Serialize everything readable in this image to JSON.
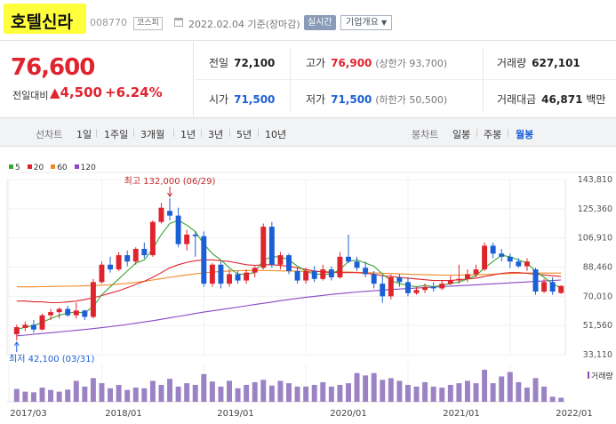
{
  "header": {
    "name": "호텔신라",
    "code": "008770",
    "market": "코스피",
    "date": "2022.02.04 기준(장마감)",
    "realtime": "실시간",
    "overview": "기업개요"
  },
  "price": {
    "current": "76,600",
    "change_label": "전일대비",
    "change_value": "▲4,500",
    "change_rate": "+6.24%"
  },
  "stats": {
    "prev_label": "전일",
    "prev": "72,100",
    "high_label": "고가",
    "high": "76,900",
    "upper_limit": "(상한가 93,700)",
    "volume_label": "거래량",
    "volume": "627,101",
    "open_label": "시가",
    "open": "71,500",
    "low_label": "저가",
    "low": "71,500",
    "lower_limit": "(하한가 50,500)",
    "amount_label": "거래대금",
    "amount": "46,871",
    "amount_unit": "백만"
  },
  "period_bar": {
    "line_label": "선차트",
    "periods": [
      "1일",
      "1주일",
      "3개월",
      "1년",
      "3년",
      "5년",
      "10년"
    ],
    "candle_label": "봉차트",
    "candles": [
      "일봉",
      "주봉",
      "월봉"
    ],
    "active_candle": "월봉"
  },
  "legend": [
    {
      "label": "5",
      "color": "#3aa533"
    },
    {
      "label": "20",
      "color": "#e0242e"
    },
    {
      "label": "60",
      "color": "#f08a24"
    },
    {
      "label": "120",
      "color": "#8a48c6"
    }
  ],
  "chart_data": {
    "type": "candlestick",
    "y_ticks": [
      "143,810",
      "125,360",
      "106,910",
      "88,460",
      "70,010",
      "51,560",
      "33,110"
    ],
    "ylim": [
      33110,
      143810
    ],
    "x_ticks": [
      "2017/03",
      "2018/01",
      "2019/01",
      "2020/01",
      "2021/01",
      "2022/01"
    ],
    "high_annotation": "최고 132,000 (06/29)",
    "low_annotation": "최저 42,100 (03/31)",
    "volume_label": "거래량",
    "up_color": "#e0242e",
    "down_color": "#1b5fd6",
    "candles": [
      {
        "o": 46000,
        "h": 52000,
        "l": 42100,
        "c": 50500
      },
      {
        "o": 50000,
        "h": 54000,
        "l": 48000,
        "c": 52000
      },
      {
        "o": 52000,
        "h": 55000,
        "l": 47000,
        "c": 49000
      },
      {
        "o": 49000,
        "h": 59000,
        "l": 48500,
        "c": 58000
      },
      {
        "o": 58000,
        "h": 62000,
        "l": 55000,
        "c": 60000
      },
      {
        "o": 60000,
        "h": 63000,
        "l": 56000,
        "c": 62000
      },
      {
        "o": 62000,
        "h": 64000,
        "l": 57000,
        "c": 58000
      },
      {
        "o": 58000,
        "h": 66000,
        "l": 56000,
        "c": 61000
      },
      {
        "o": 61000,
        "h": 61500,
        "l": 55000,
        "c": 57000
      },
      {
        "o": 57000,
        "h": 81000,
        "l": 56000,
        "c": 79000
      },
      {
        "o": 79000,
        "h": 92000,
        "l": 78000,
        "c": 90000
      },
      {
        "o": 90000,
        "h": 95000,
        "l": 85000,
        "c": 87000
      },
      {
        "o": 87000,
        "h": 98000,
        "l": 86000,
        "c": 96000
      },
      {
        "o": 96000,
        "h": 99000,
        "l": 89000,
        "c": 92000
      },
      {
        "o": 92000,
        "h": 101000,
        "l": 90000,
        "c": 100000
      },
      {
        "o": 100000,
        "h": 104000,
        "l": 94000,
        "c": 96000
      },
      {
        "o": 96000,
        "h": 118000,
        "l": 95000,
        "c": 117000
      },
      {
        "o": 117000,
        "h": 129000,
        "l": 116000,
        "c": 126000
      },
      {
        "o": 124000,
        "h": 132000,
        "l": 118000,
        "c": 121000
      },
      {
        "o": 121000,
        "h": 126000,
        "l": 101000,
        "c": 103000
      },
      {
        "o": 103000,
        "h": 112000,
        "l": 99000,
        "c": 109000
      },
      {
        "o": 109000,
        "h": 111000,
        "l": 95000,
        "c": 108000
      },
      {
        "o": 108000,
        "h": 111000,
        "l": 76000,
        "c": 78000
      },
      {
        "o": 78000,
        "h": 91000,
        "l": 76000,
        "c": 90000
      },
      {
        "o": 90000,
        "h": 92000,
        "l": 75000,
        "c": 78000
      },
      {
        "o": 78000,
        "h": 87000,
        "l": 76000,
        "c": 84000
      },
      {
        "o": 84000,
        "h": 86000,
        "l": 78000,
        "c": 80000
      },
      {
        "o": 80000,
        "h": 87000,
        "l": 78000,
        "c": 85000
      },
      {
        "o": 85000,
        "h": 89000,
        "l": 82000,
        "c": 88000
      },
      {
        "o": 88000,
        "h": 116000,
        "l": 87000,
        "c": 114000
      },
      {
        "o": 114000,
        "h": 117000,
        "l": 88000,
        "c": 90000
      },
      {
        "o": 90000,
        "h": 98000,
        "l": 87000,
        "c": 96000
      },
      {
        "o": 96000,
        "h": 97000,
        "l": 84000,
        "c": 86000
      },
      {
        "o": 86000,
        "h": 88000,
        "l": 78000,
        "c": 80000
      },
      {
        "o": 80000,
        "h": 88000,
        "l": 78000,
        "c": 86000
      },
      {
        "o": 86000,
        "h": 89000,
        "l": 79000,
        "c": 81000
      },
      {
        "o": 81000,
        "h": 90000,
        "l": 80000,
        "c": 87000
      },
      {
        "o": 87000,
        "h": 89000,
        "l": 80000,
        "c": 82000
      },
      {
        "o": 82000,
        "h": 98000,
        "l": 81000,
        "c": 95000
      },
      {
        "o": 95000,
        "h": 109000,
        "l": 91000,
        "c": 92000
      },
      {
        "o": 92000,
        "h": 95000,
        "l": 86000,
        "c": 88000
      },
      {
        "o": 88000,
        "h": 92000,
        "l": 82000,
        "c": 84000
      },
      {
        "o": 84000,
        "h": 86000,
        "l": 75000,
        "c": 78000
      },
      {
        "o": 78000,
        "h": 83000,
        "l": 66000,
        "c": 70000
      },
      {
        "o": 70000,
        "h": 84000,
        "l": 68000,
        "c": 82000
      },
      {
        "o": 82000,
        "h": 84000,
        "l": 76000,
        "c": 79000
      },
      {
        "o": 79000,
        "h": 82000,
        "l": 70000,
        "c": 72000
      },
      {
        "o": 72000,
        "h": 76000,
        "l": 71000,
        "c": 74000
      },
      {
        "o": 74000,
        "h": 78000,
        "l": 72000,
        "c": 76000
      },
      {
        "o": 76000,
        "h": 79000,
        "l": 73000,
        "c": 75000
      },
      {
        "o": 75000,
        "h": 80000,
        "l": 74000,
        "c": 78000
      },
      {
        "o": 78000,
        "h": 83000,
        "l": 77000,
        "c": 80000
      },
      {
        "o": 80000,
        "h": 90000,
        "l": 78000,
        "c": 81000
      },
      {
        "o": 81000,
        "h": 87000,
        "l": 79000,
        "c": 84000
      },
      {
        "o": 84000,
        "h": 90000,
        "l": 82000,
        "c": 87000
      },
      {
        "o": 87000,
        "h": 104000,
        "l": 86000,
        "c": 102000
      },
      {
        "o": 102000,
        "h": 104000,
        "l": 94000,
        "c": 97000
      },
      {
        "o": 97000,
        "h": 100000,
        "l": 92000,
        "c": 95000
      },
      {
        "o": 95000,
        "h": 97000,
        "l": 88000,
        "c": 92000
      },
      {
        "o": 92000,
        "h": 94000,
        "l": 88000,
        "c": 89000
      },
      {
        "o": 89000,
        "h": 94000,
        "l": 86000,
        "c": 92000
      },
      {
        "o": 87000,
        "h": 88000,
        "l": 71000,
        "c": 73000
      },
      {
        "o": 73000,
        "h": 81000,
        "l": 72000,
        "c": 79000
      },
      {
        "o": 79000,
        "h": 82000,
        "l": 71000,
        "c": 73000
      },
      {
        "o": 72100,
        "h": 76900,
        "l": 71500,
        "c": 76600
      }
    ],
    "ma5": [
      49000,
      50500,
      51500,
      53500,
      56000,
      58000,
      59500,
      60000,
      59500,
      63500,
      71000,
      76000,
      81000,
      86000,
      91000,
      93000,
      100000,
      109000,
      116000,
      118000,
      115000,
      111000,
      103000,
      97000,
      93000,
      88000,
      84000,
      84000,
      85000,
      93000,
      95000,
      95000,
      93000,
      89000,
      86000,
      84000,
      84000,
      84000,
      87000,
      92000,
      93000,
      91000,
      89000,
      84000,
      80000,
      78000,
      77000,
      76000,
      77000,
      76000,
      77000,
      78000,
      79000,
      81000,
      83000,
      88000,
      92000,
      96000,
      95000,
      93000,
      91000,
      86000,
      82000,
      78000,
      75000
    ],
    "ma20": [
      67000,
      67000,
      66500,
      66500,
      66000,
      66000,
      66500,
      67000,
      68000,
      69000,
      70500,
      72000,
      73500,
      75500,
      77500,
      79500,
      82000,
      85000,
      88000,
      90000,
      91500,
      92500,
      93000,
      93000,
      92500,
      92000,
      91000,
      90000,
      89500,
      90000,
      90000,
      89500,
      89000,
      88000,
      87000,
      86000,
      85500,
      85000,
      85000,
      85000,
      85000,
      84500,
      84000,
      83000,
      82500,
      82000,
      81500,
      81000,
      80500,
      80000,
      80000,
      80000,
      80500,
      81000,
      81500,
      82500,
      83500,
      84500,
      85000,
      85000,
      84500,
      84000,
      83500,
      83000,
      82500
    ],
    "ma60": [
      76000,
      76000,
      76000,
      76100,
      76200,
      76300,
      76400,
      76500,
      76600,
      76800,
      77000,
      77300,
      77700,
      78200,
      78800,
      79500,
      80300,
      81200,
      82000,
      82800,
      83500,
      84200,
      84800,
      85300,
      85700,
      86000,
      86200,
      86300,
      86300,
      86300,
      86200,
      86100,
      86000,
      85900,
      85800,
      85700,
      85600,
      85500,
      85400,
      85300,
      85200,
      85000,
      84800,
      84600,
      84400,
      84200,
      84000,
      83800,
      83600,
      83500,
      83400,
      83400,
      83400,
      83500,
      83600,
      83800,
      84000,
      84200,
      84400,
      84600,
      84700,
      84700,
      84700,
      84700,
      84700
    ],
    "ma120": [
      45000,
      45500,
      46000,
      46500,
      47000,
      47500,
      48000,
      48500,
      49000,
      49600,
      50200,
      50800,
      51500,
      52200,
      53000,
      53800,
      54600,
      55500,
      56400,
      57300,
      58200,
      59100,
      60000,
      60800,
      61600,
      62400,
      63200,
      64000,
      64800,
      65600,
      66400,
      67200,
      68000,
      68700,
      69400,
      70000,
      70600,
      71200,
      71700,
      72200,
      72700,
      73100,
      73500,
      73900,
      74300,
      74600,
      74900,
      75200,
      75500,
      75800,
      76100,
      76400,
      76700,
      77000,
      77300,
      77600,
      77900,
      78200,
      78500,
      78800,
      79100,
      79400,
      79700,
      80000,
      80300
    ],
    "volumes": [
      0.38,
      0.3,
      0.28,
      0.42,
      0.35,
      0.3,
      0.36,
      0.62,
      0.45,
      0.7,
      0.55,
      0.4,
      0.5,
      0.35,
      0.42,
      0.4,
      0.62,
      0.5,
      0.68,
      0.45,
      0.55,
      0.5,
      0.82,
      0.6,
      0.45,
      0.62,
      0.4,
      0.5,
      0.58,
      0.65,
      0.48,
      0.62,
      0.55,
      0.45,
      0.45,
      0.5,
      0.58,
      0.45,
      0.5,
      0.55,
      0.85,
      0.78,
      0.85,
      0.65,
      0.7,
      0.62,
      0.5,
      0.45,
      0.58,
      0.45,
      0.42,
      0.5,
      0.55,
      0.62,
      0.55,
      0.95,
      0.55,
      0.75,
      0.88,
      0.58,
      0.42,
      0.7,
      0.45,
      0.15,
      0.12
    ]
  }
}
